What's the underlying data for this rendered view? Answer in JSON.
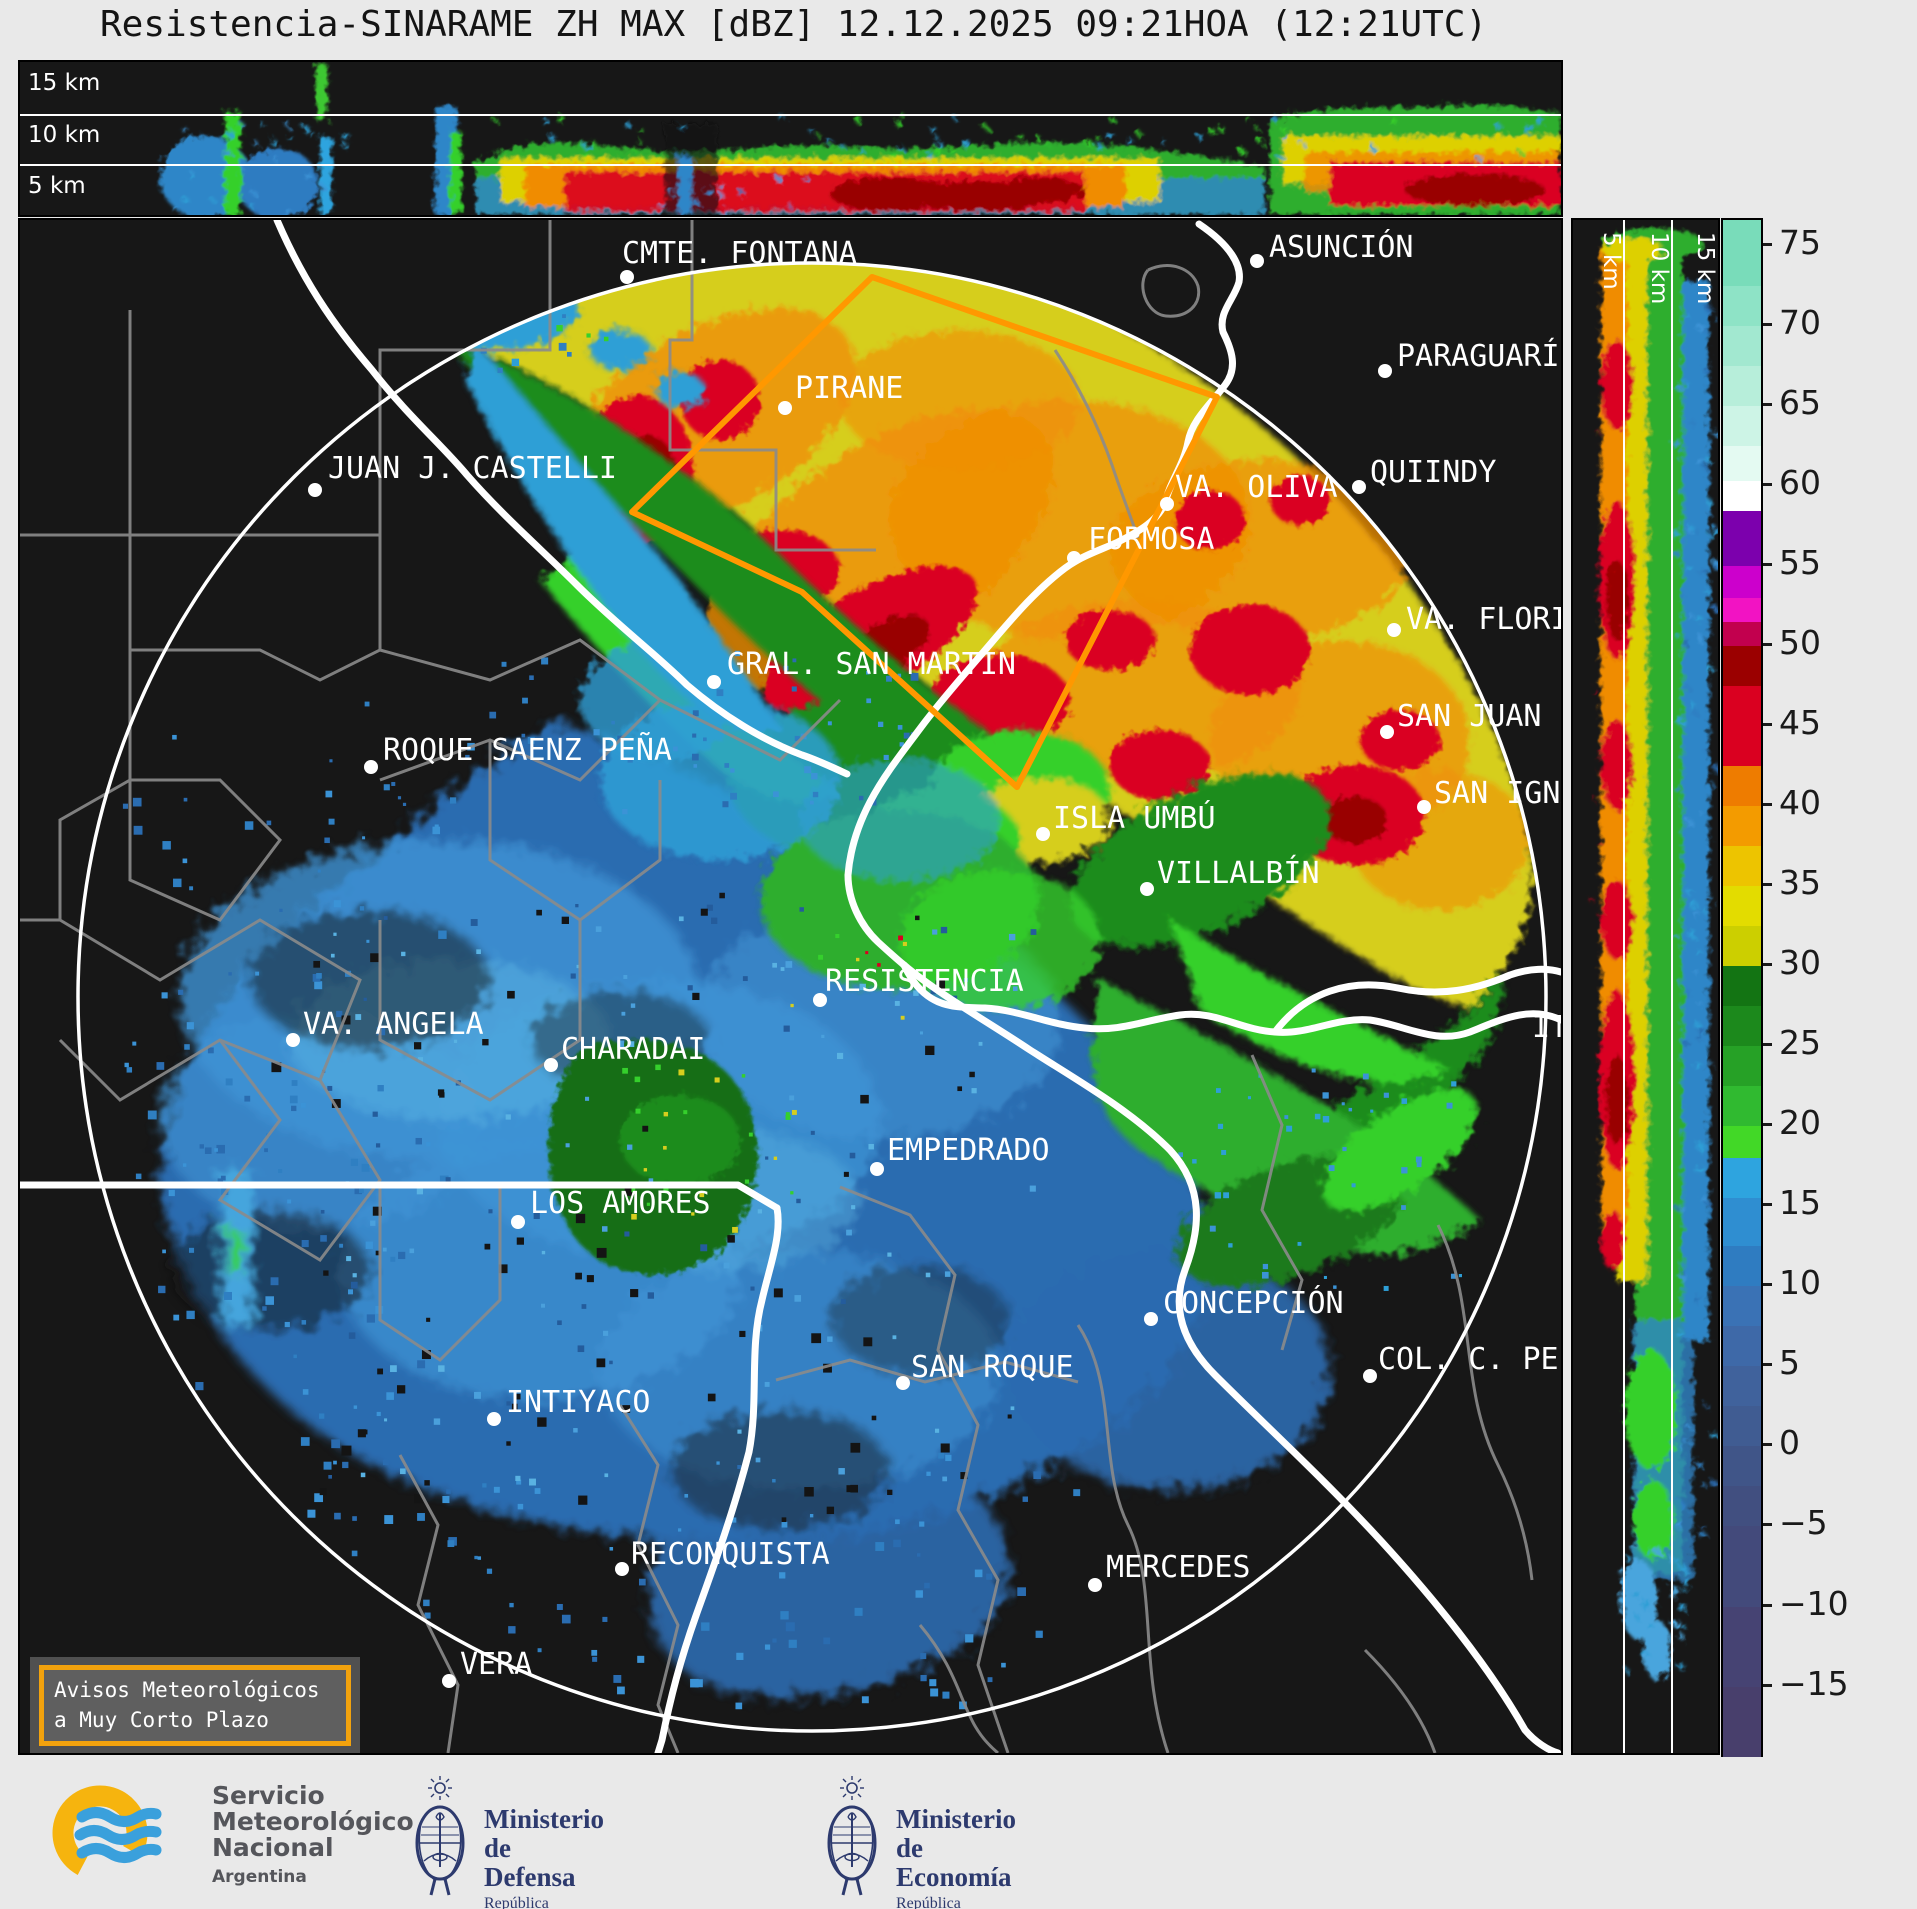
{
  "title": "Resistencia-SINARAME ZH MAX [dBZ] 12.12.2025 09:21HOA (12:21UTC)",
  "top_panel": {
    "labels": [
      "15 km",
      "10 km",
      "5 km"
    ]
  },
  "right_panel": {
    "labels": [
      "5 km",
      "10 km",
      "15 km"
    ]
  },
  "map": {
    "warning_box": [
      "Avisos Meteorológicos",
      "a Muy Corto Plazo"
    ],
    "cities": [
      {
        "name": "CMTE. FONTANA",
        "dot": [
          607,
          57
        ],
        "label": [
          602,
          16
        ]
      },
      {
        "name": "ASUNCIÓN",
        "dot": [
          1237,
          41
        ],
        "label": [
          1249,
          10
        ]
      },
      {
        "name": "PARAGUARÍ",
        "dot": [
          1365,
          151
        ],
        "label": [
          1377,
          119
        ]
      },
      {
        "name": "PIRANE",
        "dot": [
          765,
          188
        ],
        "label": [
          775,
          151
        ]
      },
      {
        "name": "JUAN J. CASTELLI",
        "dot": [
          295,
          270
        ],
        "label": [
          308,
          231
        ]
      },
      {
        "name": "QUIINDY",
        "dot": [
          1339,
          267
        ],
        "label": [
          1350,
          235
        ]
      },
      {
        "name": "VA. OLIVA",
        "dot": [
          1147,
          284
        ],
        "label": [
          1155,
          250
        ]
      },
      {
        "name": "FORMOSA",
        "dot": [
          1054,
          338
        ],
        "label": [
          1068,
          302
        ]
      },
      {
        "name": "VA. FLORID",
        "dot": [
          1374,
          410
        ],
        "label": [
          1386,
          382
        ]
      },
      {
        "name": "GRAL. SAN MARTIN",
        "dot": [
          694,
          462
        ],
        "label": [
          707,
          427
        ]
      },
      {
        "name": "ROQUE SAENZ PEÑA",
        "dot": [
          351,
          547
        ],
        "label": [
          363,
          513
        ]
      },
      {
        "name": "SAN JUAN B",
        "dot": [
          1367,
          512
        ],
        "label": [
          1377,
          479
        ]
      },
      {
        "name": "SAN IGNA",
        "dot": [
          1404,
          587
        ],
        "label": [
          1414,
          556
        ]
      },
      {
        "name": "ISLA UMBÚ",
        "dot": [
          1023,
          614
        ],
        "label": [
          1033,
          581
        ]
      },
      {
        "name": "VILLALBÍN",
        "dot": [
          1127,
          669
        ],
        "label": [
          1137,
          636
        ]
      },
      {
        "name": "RESISTENCIA",
        "dot": [
          800,
          780
        ],
        "label": [
          805,
          744
        ]
      },
      {
        "name": "VA. ANGELA",
        "dot": [
          273,
          820
        ],
        "label": [
          283,
          787
        ]
      },
      {
        "name": "CHARADAI",
        "dot": [
          531,
          845
        ],
        "label": [
          541,
          812
        ]
      },
      {
        "name": "ITA",
        "dot": null,
        "label": [
          1512,
          790
        ]
      },
      {
        "name": "EMPEDRADO",
        "dot": [
          857,
          949
        ],
        "label": [
          867,
          913
        ]
      },
      {
        "name": "LOS AMORES",
        "dot": [
          498,
          1002
        ],
        "label": [
          510,
          966
        ]
      },
      {
        "name": "CONCEPCIÓN",
        "dot": [
          1131,
          1099
        ],
        "label": [
          1143,
          1066
        ]
      },
      {
        "name": "SAN ROQUE",
        "dot": [
          883,
          1163
        ],
        "label": [
          891,
          1130
        ]
      },
      {
        "name": "COL. C. PEL",
        "dot": [
          1350,
          1156
        ],
        "label": [
          1358,
          1122
        ]
      },
      {
        "name": "INTIYACO",
        "dot": [
          474,
          1199
        ],
        "label": [
          486,
          1165
        ]
      },
      {
        "name": "RECONQUISTA",
        "dot": [
          602,
          1349
        ],
        "label": [
          611,
          1317
        ]
      },
      {
        "name": "MERCEDES",
        "dot": [
          1075,
          1365
        ],
        "label": [
          1086,
          1330
        ]
      },
      {
        "name": "VERA",
        "dot": [
          429,
          1461
        ],
        "label": [
          440,
          1427
        ]
      }
    ]
  },
  "colorbar": {
    "vmax": 76.6,
    "vmin": -19.4,
    "ticks": [
      {
        "v": 75,
        "t": "75"
      },
      {
        "v": 70,
        "t": "70"
      },
      {
        "v": 65,
        "t": "65"
      },
      {
        "v": 60,
        "t": "60"
      },
      {
        "v": 55,
        "t": "55"
      },
      {
        "v": 50,
        "t": "50"
      },
      {
        "v": 45,
        "t": "45"
      },
      {
        "v": 40,
        "t": "40"
      },
      {
        "v": 35,
        "t": "35"
      },
      {
        "v": 30,
        "t": "30"
      },
      {
        "v": 25,
        "t": "25"
      },
      {
        "v": 20,
        "t": "20"
      },
      {
        "v": 15,
        "t": "15"
      },
      {
        "v": 10,
        "t": "10"
      },
      {
        "v": 5,
        "t": "5"
      },
      {
        "v": 0,
        "t": "0"
      },
      {
        "v": -5,
        "t": "−5"
      },
      {
        "v": -10,
        "t": "−10"
      },
      {
        "v": -15,
        "t": "−15"
      }
    ],
    "segments": [
      {
        "v0": 76.6,
        "v1": 72.5,
        "c": "#79dcba"
      },
      {
        "v0": 72.5,
        "v1": 70,
        "c": "#8ee3c6"
      },
      {
        "v0": 70,
        "v1": 67.5,
        "c": "#a2e8d0"
      },
      {
        "v0": 67.5,
        "v1": 65,
        "c": "#b7eeda"
      },
      {
        "v0": 65,
        "v1": 62.5,
        "c": "#cdf4e6"
      },
      {
        "v0": 62.5,
        "v1": 60.3,
        "c": "#e4faf2"
      },
      {
        "v0": 60.3,
        "v1": 58.4,
        "c": "#ffffff"
      },
      {
        "v0": 58.4,
        "v1": 55,
        "c": "#7c00ad"
      },
      {
        "v0": 55,
        "v1": 53,
        "c": "#cc00cc"
      },
      {
        "v0": 53,
        "v1": 51.5,
        "c": "#f213c3"
      },
      {
        "v0": 51.5,
        "v1": 50,
        "c": "#c2004e"
      },
      {
        "v0": 50,
        "v1": 47.5,
        "c": "#9b0000"
      },
      {
        "v0": 47.5,
        "v1": 42.5,
        "c": "#da0020"
      },
      {
        "v0": 42.5,
        "v1": 40,
        "c": "#ee7c00"
      },
      {
        "v0": 40,
        "v1": 37.5,
        "c": "#f39b00"
      },
      {
        "v0": 37.5,
        "v1": 35,
        "c": "#edc400"
      },
      {
        "v0": 35,
        "v1": 32.5,
        "c": "#e3dc00"
      },
      {
        "v0": 32.5,
        "v1": 30,
        "c": "#cccf00"
      },
      {
        "v0": 30,
        "v1": 27.5,
        "c": "#137413"
      },
      {
        "v0": 27.5,
        "v1": 25,
        "c": "#1c891c"
      },
      {
        "v0": 25,
        "v1": 22.5,
        "c": "#26a126"
      },
      {
        "v0": 22.5,
        "v1": 20,
        "c": "#30ba30"
      },
      {
        "v0": 20,
        "v1": 18,
        "c": "#42d827"
      },
      {
        "v0": 18,
        "v1": 15.5,
        "c": "#2ea4df"
      },
      {
        "v0": 15.5,
        "v1": 12.5,
        "c": "#2f8ed1"
      },
      {
        "v0": 12.5,
        "v1": 10,
        "c": "#2f7cc1"
      },
      {
        "v0": 10,
        "v1": 7.5,
        "c": "#3a72b5"
      },
      {
        "v0": 7.5,
        "v1": 5,
        "c": "#3e69a8"
      },
      {
        "v0": 5,
        "v1": 2.5,
        "c": "#40629c"
      },
      {
        "v0": 2.5,
        "v1": 0,
        "c": "#405c92"
      },
      {
        "v0": 0,
        "v1": -2.5,
        "c": "#405588"
      },
      {
        "v0": -2.5,
        "v1": -5,
        "c": "#414f80"
      },
      {
        "v0": -5,
        "v1": -10,
        "c": "#434a7b"
      },
      {
        "v0": -10,
        "v1": -15,
        "c": "#464373"
      },
      {
        "v0": -15,
        "v1": -19.4,
        "c": "#483f6c"
      }
    ]
  },
  "footer": {
    "smn": {
      "line1": "Servicio",
      "line2": "Meteorológico",
      "line3": "Nacional",
      "line4": "Argentina",
      "icon": "smn-wave-logo"
    },
    "defensa": {
      "line1": "Ministerio",
      "line2": "de Defensa",
      "line3": "República Argentina",
      "icon": "argentina-crest-icon"
    },
    "economia": {
      "line1": "Ministerio",
      "line2": "de Economía",
      "line3": "República Argentina",
      "icon": "argentina-crest-icon"
    }
  },
  "colors": {
    "warning_border": "#f2a20d",
    "map_bg": "#171717",
    "city_text": "#ffffff",
    "smn_yellow": "#f6b40e",
    "smn_blue": "#3aa0dc",
    "ministry_navy": "#2d3a6e"
  }
}
